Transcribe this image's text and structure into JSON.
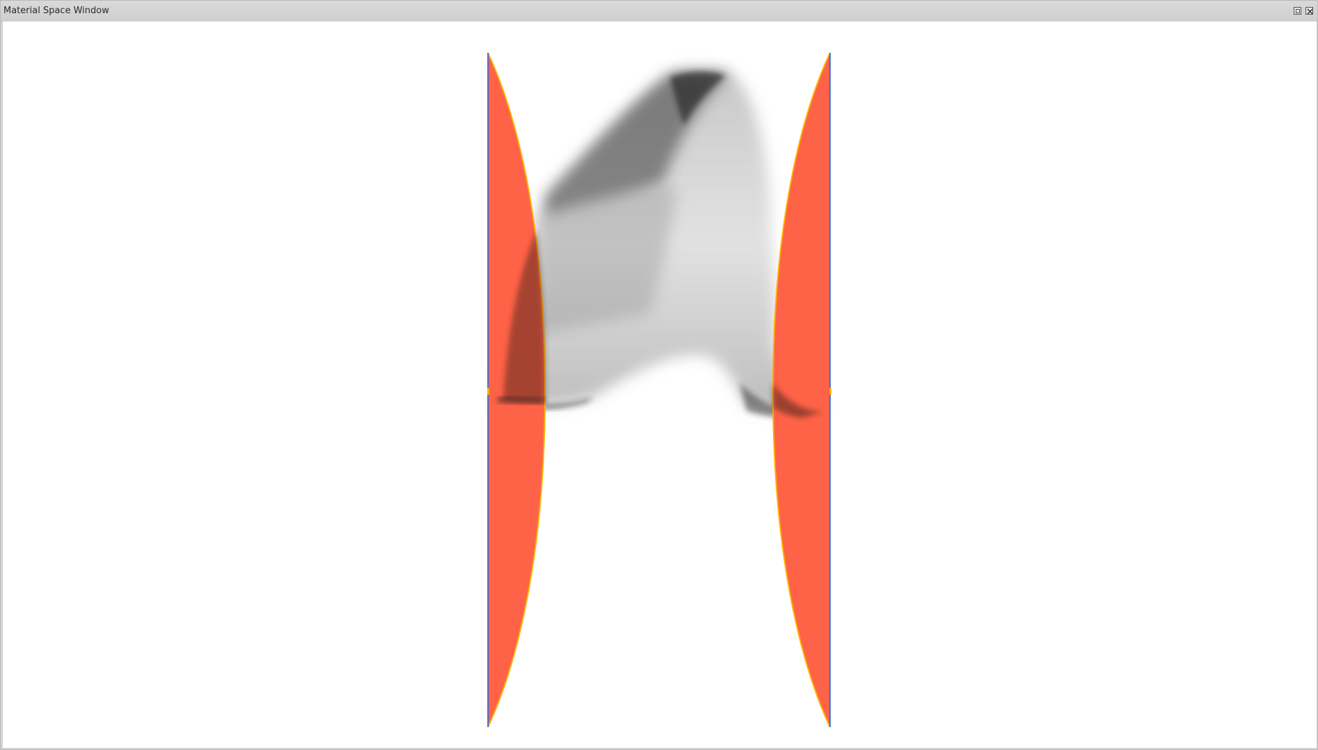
{
  "window": {
    "title": "Material Space Window",
    "controls": [
      "float-button",
      "close-button"
    ]
  },
  "viewport": {
    "background_color": "#ffffff",
    "fill_color": "#ff6347",
    "edge_color": "#ffb000",
    "axis_color": "#3f6fd6",
    "shadow_color": "#1a1a1a"
  }
}
